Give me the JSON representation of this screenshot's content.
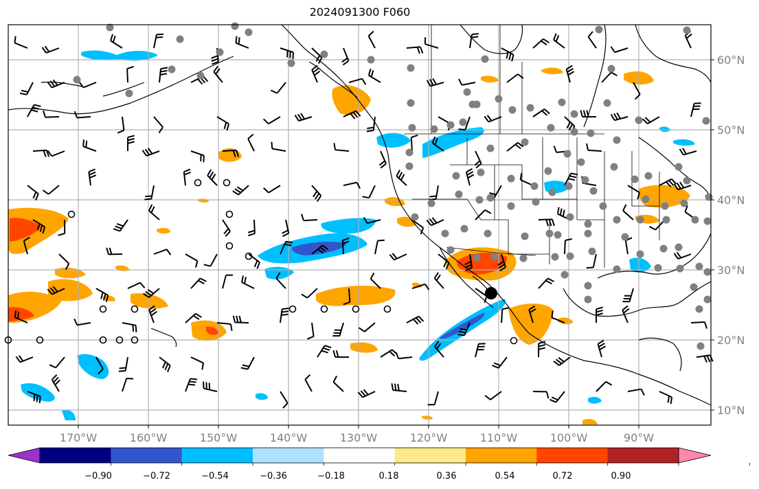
{
  "title": "2024091300 F060",
  "lon_labels": [
    "170°W",
    "160°W",
    "150°W",
    "140°W",
    "130°W",
    "120°W",
    "110°W",
    "100°W",
    "90°W"
  ],
  "lat_labels": [
    "60°N",
    "50°N",
    "40°N",
    "30°N",
    "20°N",
    "10°N"
  ],
  "colorbar": {
    "ticks": [
      "−0.90",
      "−0.72",
      "−0.54",
      "−0.36",
      "−0.18",
      "0.18",
      "0.36",
      "0.54",
      "0.72",
      "0.90"
    ],
    "colors": [
      "#9933cc",
      "#000080",
      "#3355cc",
      "#00bfff",
      "#b0e0ff",
      "#ffffff",
      "#ffe88a",
      "#ffa500",
      "#ff4500",
      "#b22222",
      "#ff88aa"
    ]
  },
  "colors": {
    "land_lines": "#000000",
    "grid": "#b0b0b0",
    "stations": "#808080",
    "marker": "#000000"
  }
}
